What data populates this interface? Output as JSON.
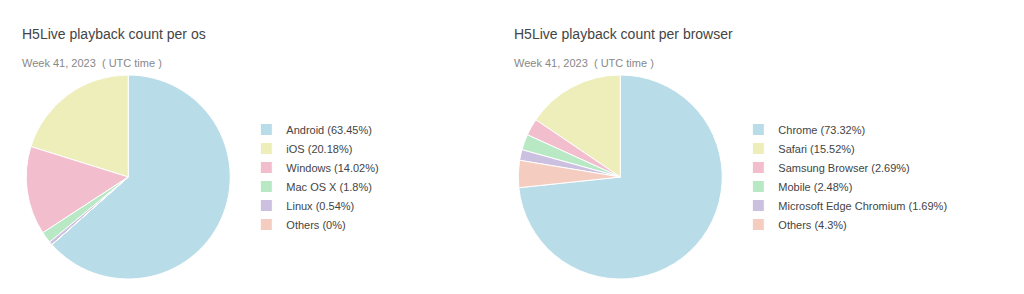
{
  "chart_data": [
    {
      "type": "pie",
      "title": "H5Live playback count per os",
      "subtitle": "Week 41, 2023  ( UTC time )",
      "categories": [
        "Android (63.45%)",
        "iOS (20.18%)",
        "Windows (14.02%)",
        "Mac OS X (1.8%)",
        "Linux (0.54%)",
        "Others (0%)"
      ],
      "values": [
        63.45,
        20.18,
        14.02,
        1.8,
        0.54,
        0.01
      ],
      "colors": [
        "#b8dce8",
        "#eeeebb",
        "#f2bece",
        "#b8e8c4",
        "#ccc0e0",
        "#f5ccc0"
      ]
    },
    {
      "type": "pie",
      "title": "H5Live playback count per browser",
      "subtitle": "Week 41, 2023  ( UTC time )",
      "categories": [
        "Chrome (73.32%)",
        "Safari (15.52%)",
        "Samsung Browser (2.69%)",
        "Mobile (2.48%)",
        "Microsoft Edge Chromium (1.69%)",
        "Others (4.3%)"
      ],
      "values": [
        73.32,
        15.52,
        2.69,
        2.48,
        1.69,
        4.3
      ],
      "colors": [
        "#b8dce8",
        "#eeeebb",
        "#f2bece",
        "#b8e8c4",
        "#ccc0e0",
        "#f5ccc0"
      ]
    }
  ]
}
